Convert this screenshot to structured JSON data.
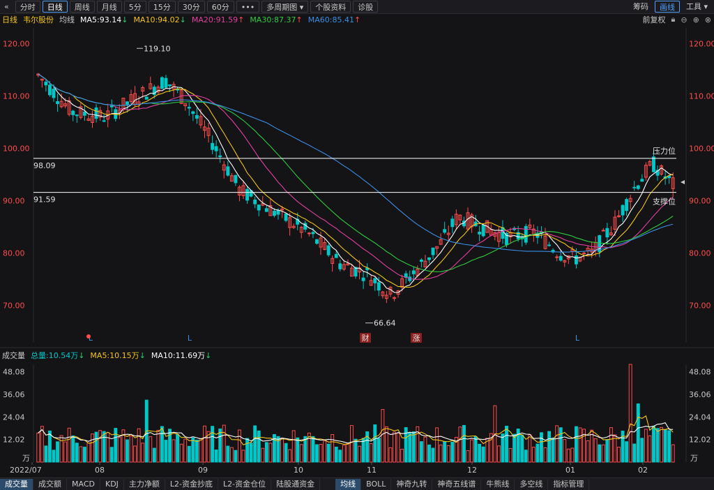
{
  "topbar": {
    "back": "«",
    "tabs": [
      {
        "label": "分时",
        "active": false
      },
      {
        "label": "日线",
        "active": true
      },
      {
        "label": "周线",
        "active": false
      },
      {
        "label": "月线",
        "active": false
      },
      {
        "label": "5分",
        "active": false
      },
      {
        "label": "15分",
        "active": false
      },
      {
        "label": "30分",
        "active": false
      },
      {
        "label": "60分",
        "active": false
      },
      {
        "label": "•••",
        "active": false
      },
      {
        "label": "多周期图 ▾",
        "active": false
      },
      {
        "label": "个股资料",
        "active": false
      },
      {
        "label": "诊股",
        "active": false
      }
    ],
    "right": [
      "筹码",
      "画线",
      "工具 ▾"
    ]
  },
  "indicators": {
    "period": "日线",
    "stock": "韦尔股份",
    "avg": "均线",
    "ma5": "MA5:93.14",
    "ma10": "MA10:94.02",
    "ma20": "MA20:91.59",
    "ma30": "MA30:87.37",
    "ma60": "MA60:85.41",
    "adjust": "前复权",
    "colors": {
      "ma5": "#ffffff",
      "ma10": "#f5c518",
      "ma20": "#e040a0",
      "ma30": "#2ecc40",
      "ma60": "#3a8ee6",
      "up": "#ff4d4d",
      "down": "#00c8c8"
    }
  },
  "volume_bar": {
    "title": "成交量",
    "total": "总量:10.54万",
    "ma5": "MA5:10.15万",
    "ma10": "MA10:11.69万"
  },
  "bottom_tabs": [
    "成交量",
    "成交额",
    "MACD",
    "KDJ",
    "主力净额",
    "L2-资金抄底",
    "L2-资金仓位",
    "陆股通资金",
    "均线",
    "BOLL",
    "神奇九转",
    "神奇五线谱",
    "牛熊线",
    "多空线",
    "指标管理"
  ],
  "chart_data": [
    {
      "type": "candlestick",
      "ylim": [
        63,
        123
      ],
      "yticks": [
        "120.00",
        "110.00",
        "100.00",
        "90.00",
        "80.00",
        "70.00"
      ],
      "xticks": [
        "2022/07",
        "08",
        "09",
        "10",
        "11",
        "12",
        "01",
        "02"
      ],
      "high_label": "119.10",
      "low_label": "66.64",
      "hlines": [
        {
          "value": 98.09,
          "label": "98.09",
          "tag": "压力位"
        },
        {
          "value": 91.59,
          "label": "91.59",
          "tag": "支撑位"
        }
      ],
      "markers": [
        "L",
        "L",
        "财",
        "涨",
        "L"
      ],
      "ma_values_last": {
        "MA5": 93.14,
        "MA10": 94.02,
        "MA20": 91.59,
        "MA30": 87.37,
        "MA60": 85.41
      }
    },
    {
      "type": "bar",
      "unit": "万",
      "yticks": [
        "48.08",
        "36.06",
        "24.04",
        "12.02"
      ],
      "ylim": [
        0,
        52
      ]
    }
  ]
}
